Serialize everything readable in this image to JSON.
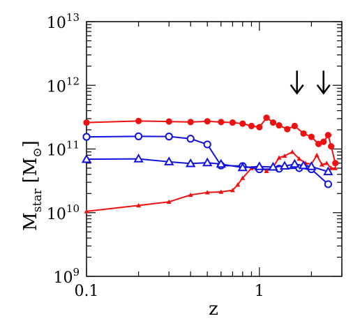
{
  "chart_data": {
    "type": "line",
    "xscale": "log",
    "yscale": "log",
    "xlim": [
      0.1,
      3.0
    ],
    "ylim": [
      1000000000.0,
      10000000000000.0
    ],
    "grid": false,
    "xlabel": "z",
    "ylabel": {
      "main": "M",
      "sub": "star",
      "unit_open": "[M",
      "unit_symbol": "⊙",
      "unit_close": "]"
    },
    "xticks": [
      {
        "value": 0.1,
        "label": "0.1"
      },
      {
        "value": 1,
        "label": "1"
      }
    ],
    "yticks": [
      {
        "value": 1000000000.0,
        "base": "10",
        "exp": "9"
      },
      {
        "value": 10000000000.0,
        "base": "10",
        "exp": "10"
      },
      {
        "value": 100000000000.0,
        "base": "10",
        "exp": "11"
      },
      {
        "value": 1000000000000.0,
        "base": "10",
        "exp": "12"
      },
      {
        "value": 10000000000000.0,
        "base": "10",
        "exp": "13"
      }
    ],
    "arrows": [
      {
        "z": 1.65,
        "y_top": 1700000000000.0,
        "y_bottom": 750000000000.0
      },
      {
        "z": 2.35,
        "y_top": 1700000000000.0,
        "y_bottom": 750000000000.0
      }
    ],
    "series": [
      {
        "color": "#ee1111",
        "marker": "filled-circle",
        "x": [
          0.1,
          0.2,
          0.3,
          0.4,
          0.5,
          0.6,
          0.7,
          0.8,
          0.9,
          1.0,
          1.1,
          1.2,
          1.3,
          1.45,
          1.6,
          1.8,
          2.0,
          2.2,
          2.35,
          2.5,
          2.6,
          2.75
        ],
        "y": [
          260000000000.0,
          275000000000.0,
          270000000000.0,
          265000000000.0,
          272000000000.0,
          265000000000.0,
          260000000000.0,
          250000000000.0,
          230000000000.0,
          220000000000.0,
          310000000000.0,
          260000000000.0,
          235000000000.0,
          205000000000.0,
          230000000000.0,
          175000000000.0,
          155000000000.0,
          120000000000.0,
          130000000000.0,
          165000000000.0,
          110000000000.0,
          60000000000.0
        ]
      },
      {
        "color": "#ee1111",
        "marker": "filled-triangle",
        "x": [
          0.1,
          0.2,
          0.3,
          0.4,
          0.5,
          0.6,
          0.7,
          0.75,
          0.8,
          0.9,
          1.0,
          1.1,
          1.2,
          1.3,
          1.4,
          1.55,
          1.7,
          1.85,
          2.0,
          2.15,
          2.3,
          2.45,
          2.6,
          2.75
        ],
        "y": [
          10500000000.0,
          13000000000.0,
          14800000000.0,
          19000000000.0,
          20800000000.0,
          21200000000.0,
          22500000000.0,
          27500000000.0,
          35000000000.0,
          50000000000.0,
          55000000000.0,
          45000000000.0,
          52000000000.0,
          73000000000.0,
          78000000000.0,
          90000000000.0,
          70000000000.0,
          60000000000.0,
          58000000000.0,
          80000000000.0,
          57000000000.0,
          60000000000.0,
          50000000000.0,
          50000000000.0
        ]
      },
      {
        "color": "#1111dd",
        "marker": "open-circle",
        "x": [
          0.1,
          0.2,
          0.3,
          0.4,
          0.5,
          0.6,
          0.8,
          1.0,
          1.3,
          1.7,
          2.0,
          2.5
        ],
        "y": [
          155000000000.0,
          158000000000.0,
          157000000000.0,
          145000000000.0,
          118000000000.0,
          55000000000.0,
          54000000000.0,
          48000000000.0,
          49000000000.0,
          50000000000.0,
          48000000000.0,
          28000000000.0
        ]
      },
      {
        "color": "#1111dd",
        "marker": "open-triangle",
        "x": [
          0.1,
          0.2,
          0.3,
          0.4,
          0.5,
          0.6,
          0.8,
          1.0,
          1.2,
          1.4,
          1.6,
          1.8,
          2.0,
          2.5
        ],
        "y": [
          69000000000.0,
          70000000000.0,
          63000000000.0,
          59000000000.0,
          61000000000.0,
          58000000000.0,
          51000000000.0,
          53000000000.0,
          52000000000.0,
          54000000000.0,
          58000000000.0,
          55000000000.0,
          53000000000.0,
          44000000000.0
        ]
      }
    ]
  }
}
